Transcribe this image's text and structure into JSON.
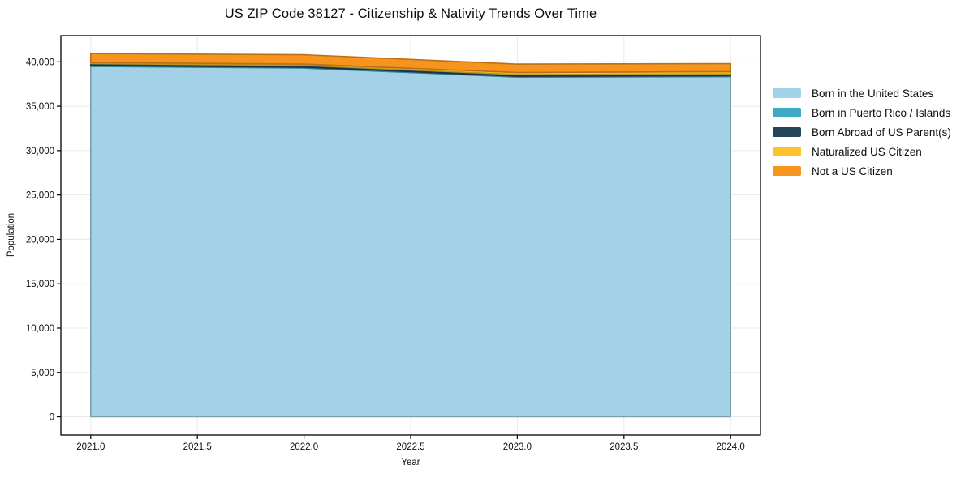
{
  "chart_data": {
    "type": "area",
    "stacked": true,
    "title": "US ZIP Code 38127 - Citizenship & Nativity Trends Over Time",
    "xlabel": "Year",
    "ylabel": "Population",
    "x": [
      2021,
      2022,
      2023,
      2024
    ],
    "series": [
      {
        "name": "Born in the United States",
        "color": "#a3d2e8",
        "values": [
          39480,
          39300,
          38290,
          38340
        ]
      },
      {
        "name": "Born in Puerto Rico / Islands",
        "color": "#3fa9c5",
        "values": [
          110,
          100,
          90,
          100
        ]
      },
      {
        "name": "Born Abroad of US Parent(s)",
        "color": "#23455a",
        "values": [
          210,
          200,
          190,
          200
        ]
      },
      {
        "name": "Naturalized US Citizen",
        "color": "#fcc32b",
        "values": [
          130,
          150,
          230,
          260
        ]
      },
      {
        "name": "Not a US Citizen",
        "color": "#f6941e",
        "values": [
          1000,
          1050,
          950,
          900
        ]
      }
    ],
    "xlim": [
      2020.86,
      2024.14
    ],
    "ylim": [
      -2050,
      42950
    ],
    "xticks": {
      "values": [
        2021.0,
        2021.5,
        2022.0,
        2022.5,
        2023.0,
        2023.5,
        2024.0
      ],
      "labels": [
        "2021.0",
        "2021.5",
        "2022.0",
        "2022.5",
        "2023.0",
        "2023.5",
        "2024.0"
      ]
    },
    "yticks": {
      "values": [
        0,
        5000,
        10000,
        15000,
        20000,
        25000,
        30000,
        35000,
        40000
      ],
      "labels": [
        "0",
        "5,000",
        "10,000",
        "15,000",
        "20,000",
        "25,000",
        "30,000",
        "35,000",
        "40,000"
      ]
    },
    "grid": true,
    "grid_color": "#eaeaea",
    "spine_color": "#000000",
    "legend_position": "right"
  }
}
